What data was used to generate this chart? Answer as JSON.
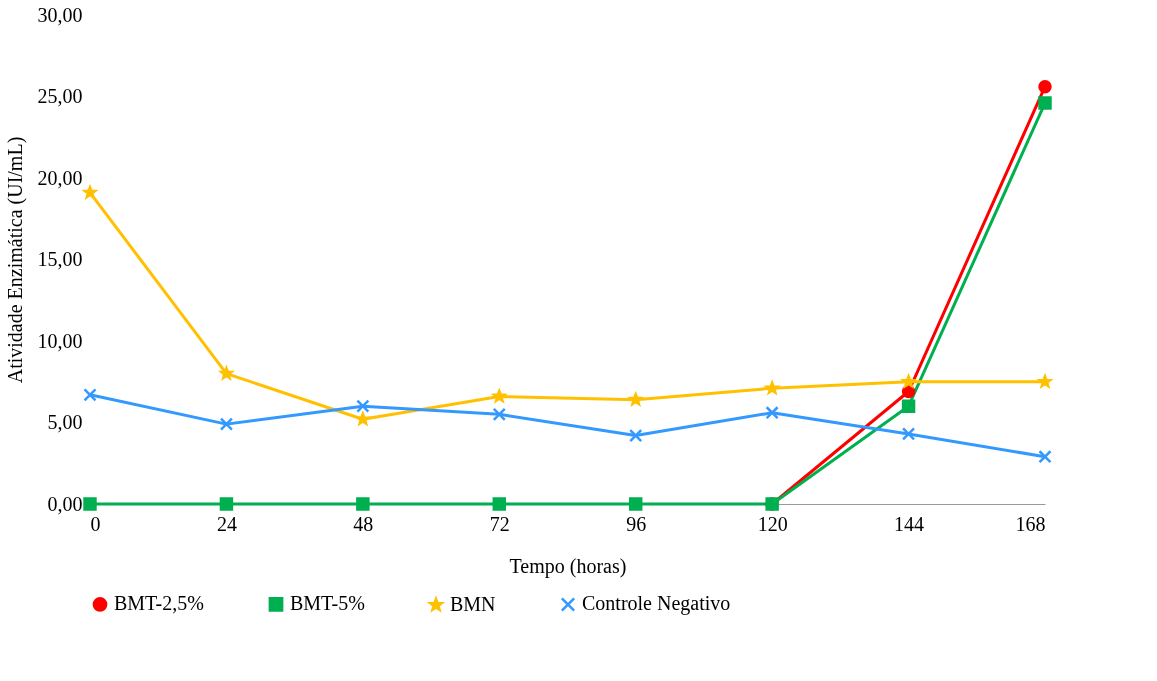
{
  "chart_data": {
    "type": "line",
    "xlabel": "Tempo (horas)",
    "ylabel": "Atividade Enzimática (UI/mL)",
    "x": [
      0,
      24,
      48,
      72,
      96,
      120,
      144,
      168
    ],
    "series": [
      {
        "name": "BMT-2,5%",
        "color": "#ff0000",
        "marker": "circle",
        "values": [
          null,
          null,
          null,
          null,
          null,
          0,
          6.9,
          25.6
        ]
      },
      {
        "name": "BMT-5%",
        "color": "#00b050",
        "marker": "square",
        "values": [
          0,
          0,
          0,
          0,
          0,
          0,
          6.0,
          24.6
        ]
      },
      {
        "name": "BMN",
        "color": "#ffc000",
        "marker": "star",
        "values": [
          19.1,
          8.0,
          5.2,
          6.6,
          6.4,
          7.1,
          7.5,
          7.5
        ]
      },
      {
        "name": "Controle Negativo",
        "color": "#3399ff",
        "marker": "cross",
        "values": [
          6.7,
          4.9,
          6.0,
          5.5,
          4.2,
          5.6,
          4.3,
          2.9
        ]
      }
    ],
    "xlim": [
      0,
      168
    ],
    "xticks": [
      0,
      24,
      48,
      72,
      96,
      120,
      144,
      168
    ],
    "ylim": [
      0,
      30
    ],
    "yticks": [
      {
        "value": 0,
        "label": "0,00"
      },
      {
        "value": 5,
        "label": "5,00"
      },
      {
        "value": 10,
        "label": "10,00"
      },
      {
        "value": 15,
        "label": "15,00"
      },
      {
        "value": 20,
        "label": "20,00"
      },
      {
        "value": 25,
        "label": "25,00"
      },
      {
        "value": 30,
        "label": "30,00"
      }
    ],
    "grid": false,
    "legend": "bottom",
    "line_style": "solid"
  }
}
